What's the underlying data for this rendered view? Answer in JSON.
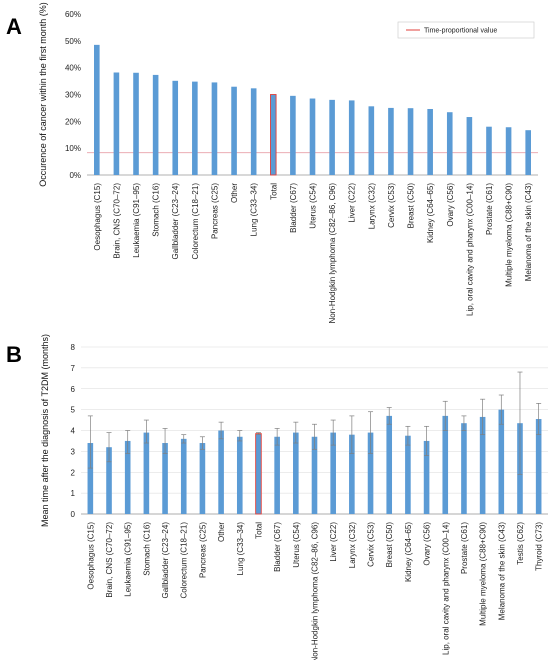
{
  "colors": {
    "bar": "#5b9bd5",
    "highlight_border": "#e0413c",
    "ref_line": "#e8a0a8",
    "error_bar": "#7f7f7f",
    "grid": "#d9d9d9",
    "axis": "#999999"
  },
  "chart_data": [
    {
      "panel": "A",
      "type": "bar",
      "title": "",
      "ylabel": "Occurence of cancer within the first month (%)",
      "xlabel": "",
      "ylim": [
        0,
        60
      ],
      "yticks": [
        0,
        10,
        20,
        30,
        40,
        50,
        60
      ],
      "ytick_suffix": "%",
      "grid": false,
      "legend_position": "top-right",
      "highlight": "Total",
      "reference_line": {
        "label": "Time-proportional value",
        "value": 8.3
      },
      "categories": [
        "Oesophagus (C15)",
        "Brain, CNS (C70–72)",
        "Leukaemia (C91–95)",
        "Stomach (C16)",
        "Gallbladder (C23–24)",
        "Colorectum (C18–21)",
        "Pancreas (C25)",
        "Other",
        "Lung (C33–34)",
        "Total",
        "Bladder (C67)",
        "Uterus (C54)",
        "Non-Hodgkin lymphoma (C82–86, C96)",
        "Liver (C22)",
        "Larynx (C32)",
        "Cervix (C53)",
        "Breast (C50)",
        "Kidney (C64–65)",
        "Ovary (C56)",
        "Lip, oral cavity and pharynx (C00–14)",
        "Prostate (C61)",
        "Multiple myeloma (C88+C90)",
        "Melanoma of the skin (C43)"
      ],
      "values": [
        48.5,
        38.2,
        38.1,
        37.3,
        35.1,
        34.8,
        34.5,
        32.9,
        32.3,
        30.0,
        29.5,
        28.5,
        28.0,
        27.8,
        25.6,
        25.0,
        24.9,
        24.6,
        23.4,
        21.6,
        18.0,
        17.8,
        16.7
      ]
    },
    {
      "panel": "B",
      "type": "bar",
      "title": "",
      "ylabel": "Mean time after the diagnosis of T2DM (months)",
      "xlabel": "",
      "ylim": [
        0,
        8
      ],
      "yticks": [
        0,
        1,
        2,
        3,
        4,
        5,
        6,
        7,
        8
      ],
      "ytick_suffix": "",
      "grid": true,
      "highlight": "Total",
      "categories": [
        "Oesophagus (C15)",
        "Brain, CNS (C70–72)",
        "Leukaemia (C91–95)",
        "Stomach (C16)",
        "Gallbladder (C23–24)",
        "Colorectum (C18–21)",
        "Pancreas (C25)",
        "Other",
        "Lung (C33–34)",
        "Total",
        "Bladder (C67)",
        "Uterus (C54)",
        "Non-Hodgkin lymphoma (C82–86, C96)",
        "Liver (C22)",
        "Larynx (C32)",
        "Cervix (C53)",
        "Breast (C50)",
        "Kidney (C64–65)",
        "Ovary (C56)",
        "Lip, oral cavity and pharynx (C00–14)",
        "Prostate (C61)",
        "Multiple myeloma (C88+C90)",
        "Melanoma of the skin (C43)",
        "Testis (C62)",
        "Thyroid (C73)"
      ],
      "values": [
        3.4,
        3.2,
        3.5,
        3.9,
        3.4,
        3.6,
        3.4,
        4.0,
        3.7,
        3.85,
        3.7,
        3.9,
        3.7,
        3.9,
        3.8,
        3.9,
        4.7,
        3.75,
        3.5,
        4.7,
        4.35,
        4.65,
        5.0,
        4.35,
        4.55
      ],
      "error_low": [
        2.2,
        2.5,
        2.9,
        3.4,
        2.9,
        3.4,
        3.1,
        3.6,
        3.5,
        3.8,
        3.3,
        3.4,
        3.1,
        3.3,
        2.9,
        2.9,
        4.3,
        3.3,
        2.8,
        4.0,
        4.0,
        3.8,
        4.3,
        1.9,
        3.8
      ],
      "error_high": [
        4.7,
        3.9,
        4.0,
        4.5,
        4.1,
        3.8,
        3.7,
        4.4,
        4.0,
        3.9,
        4.1,
        4.4,
        4.3,
        4.5,
        4.7,
        4.9,
        5.1,
        4.2,
        4.2,
        5.4,
        4.7,
        5.5,
        5.7,
        6.8,
        5.3
      ]
    }
  ]
}
